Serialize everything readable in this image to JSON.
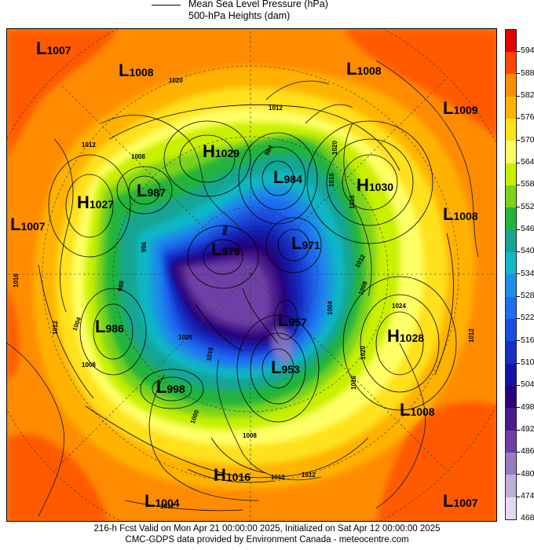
{
  "header": {
    "legend_line_label": "Mean Sea Level Pressure (hPa)",
    "legend_sub_label": "500-hPa Heights (dam)"
  },
  "footer": {
    "line1": "216-h Fcst Valid on Mon Apr 21 00:00:00 2025, Initialized on Sat Apr 12 00:00:00 2025",
    "line2": "CMC-GDPS data provided by Environment Canada - meteocentre.com"
  },
  "colorbar": {
    "labels": [
      "594",
      "588",
      "582",
      "576",
      "570",
      "564",
      "558",
      "552",
      "546",
      "540",
      "534",
      "528",
      "522",
      "516",
      "510",
      "504",
      "498",
      "492",
      "486",
      "480",
      "474",
      "468"
    ],
    "colors": [
      "#e60000",
      "#ff4500",
      "#ff8c00",
      "#ffb300",
      "#ffe11a",
      "#ffff66",
      "#c8f000",
      "#7cd31a",
      "#23b43c",
      "#16a592",
      "#10b7c4",
      "#1f8fe6",
      "#1e6ff0",
      "#1a4fe0",
      "#1430c4",
      "#1212a6",
      "#28007a",
      "#4b1a8c",
      "#6e3fa6",
      "#967cc0",
      "#bdb0d8",
      "#e4daf0"
    ]
  },
  "pressure_centers": [
    {
      "type": "L",
      "value": "1007"
    },
    {
      "type": "L",
      "value": "1008"
    },
    {
      "type": "L",
      "value": "1008"
    },
    {
      "type": "L",
      "value": "1009"
    },
    {
      "type": "H",
      "value": "1029"
    },
    {
      "type": "L",
      "value": "984"
    },
    {
      "type": "H",
      "value": "1030"
    },
    {
      "type": "L",
      "value": "987"
    },
    {
      "type": "H",
      "value": "1027"
    },
    {
      "type": "L",
      "value": "1007"
    },
    {
      "type": "L",
      "value": "1008"
    },
    {
      "type": "L",
      "value": "979"
    },
    {
      "type": "L",
      "value": "971"
    },
    {
      "type": "L",
      "value": "986"
    },
    {
      "type": "L",
      "value": "957"
    },
    {
      "type": "H",
      "value": "1028"
    },
    {
      "type": "L",
      "value": "953"
    },
    {
      "type": "L",
      "value": "998"
    },
    {
      "type": "L",
      "value": "1008"
    },
    {
      "type": "H",
      "value": "1016"
    },
    {
      "type": "L",
      "value": "1004"
    },
    {
      "type": "L",
      "value": "1007"
    }
  ],
  "contour_labels": [
    "1020",
    "1012",
    "1012",
    "1008",
    "1020",
    "1016",
    "1012",
    "1016",
    "1024",
    "1020",
    "1012",
    "1016",
    "1012",
    "1004",
    "1008",
    "1004",
    "1020",
    "1016",
    "1008",
    "1012",
    "1012",
    "1008",
    "1000",
    "988",
    "984",
    "996",
    "988",
    "1016",
    "1012"
  ]
}
